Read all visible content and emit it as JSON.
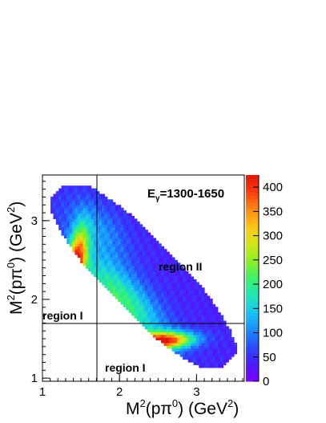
{
  "chart_data": {
    "type": "heatmap",
    "title": "Eγ=1300-1650",
    "title_main": "E",
    "title_sub": "γ",
    "title_rest": "=1300-1650",
    "xlabel": {
      "main": "M",
      "sup1": "2",
      "mid": "(pπ",
      "sup2": "0",
      "end": ") (GeV",
      "sup3": "2",
      "close": ")"
    },
    "ylabel": {
      "main": "M",
      "sup1": "2",
      "mid": "(pπ",
      "sup2": "0",
      "end": ") (GeV",
      "sup3": "2",
      "close": ")"
    },
    "xlim": [
      1.0,
      3.62
    ],
    "ylim": [
      0.96,
      3.58
    ],
    "x_ticks": [
      1,
      2,
      3
    ],
    "y_ticks": [
      1,
      2,
      3
    ],
    "z_range": [
      0,
      425
    ],
    "z_ticks": [
      0,
      50,
      100,
      150,
      200,
      250,
      300,
      350,
      400
    ],
    "colormap": [
      "#7a00ff",
      "#4b1bff",
      "#2a4bff",
      "#1a8cff",
      "#17c4f5",
      "#1fe6b6",
      "#3cf26a",
      "#8cf024",
      "#d2e81a",
      "#fcc515",
      "#ff8a12",
      "#ff3e0d",
      "#e3160b"
    ],
    "divider_lines": {
      "vertical_x": 1.72,
      "horizontal_y": 1.75
    },
    "regions": [
      {
        "label": "region I",
        "x": 1.35,
        "y": 1.81
      },
      {
        "label": "region I",
        "x": 1.85,
        "y": 1.13
      },
      {
        "label": "region II",
        "x": 2.5,
        "y": 2.47
      }
    ],
    "hotspots": [
      {
        "x": 1.45,
        "y": 2.5,
        "value": 400
      },
      {
        "x": 2.55,
        "y": 1.48,
        "value": 410
      }
    ]
  }
}
